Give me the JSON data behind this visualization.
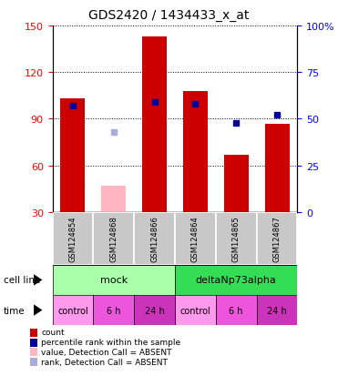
{
  "title": "GDS2420 / 1434433_x_at",
  "samples": [
    "GSM124854",
    "GSM124868",
    "GSM124866",
    "GSM124864",
    "GSM124865",
    "GSM124867"
  ],
  "count_values": [
    103,
    null,
    143,
    108,
    67,
    87
  ],
  "count_absent": [
    null,
    47,
    null,
    null,
    null,
    null
  ],
  "rank_values": [
    57,
    null,
    59,
    58,
    48,
    52
  ],
  "rank_absent": [
    null,
    43,
    null,
    null,
    null,
    null
  ],
  "ylim_left": [
    30,
    150
  ],
  "ylim_right": [
    0,
    100
  ],
  "yticks_left": [
    30,
    60,
    90,
    120,
    150
  ],
  "yticks_right": [
    0,
    25,
    50,
    75,
    100
  ],
  "ytick_labels_right": [
    "0",
    "25",
    "50",
    "75",
    "100%"
  ],
  "cell_line_labels": [
    "mock",
    "deltaNp73alpha"
  ],
  "cell_line_spans": [
    [
      0,
      3
    ],
    [
      3,
      6
    ]
  ],
  "cell_line_colors": [
    "#AAFFAA",
    "#33DD55"
  ],
  "time_labels": [
    "control",
    "6 h",
    "24 h",
    "control",
    "6 h",
    "24 h"
  ],
  "time_colors": [
    "#FF99EE",
    "#EE55DD",
    "#CC33BB",
    "#FF99EE",
    "#EE55DD",
    "#CC33BB"
  ],
  "bar_color": "#CC0000",
  "bar_absent_color": "#FFB6C1",
  "rank_color": "#000099",
  "rank_absent_color": "#AAAADD",
  "grid_color": "#000000",
  "bar_width": 0.6,
  "legend_items": [
    {
      "color": "#CC0000",
      "label": "count"
    },
    {
      "color": "#000099",
      "label": "percentile rank within the sample"
    },
    {
      "color": "#FFB6C1",
      "label": "value, Detection Call = ABSENT"
    },
    {
      "color": "#AAAADD",
      "label": "rank, Detection Call = ABSENT"
    }
  ]
}
